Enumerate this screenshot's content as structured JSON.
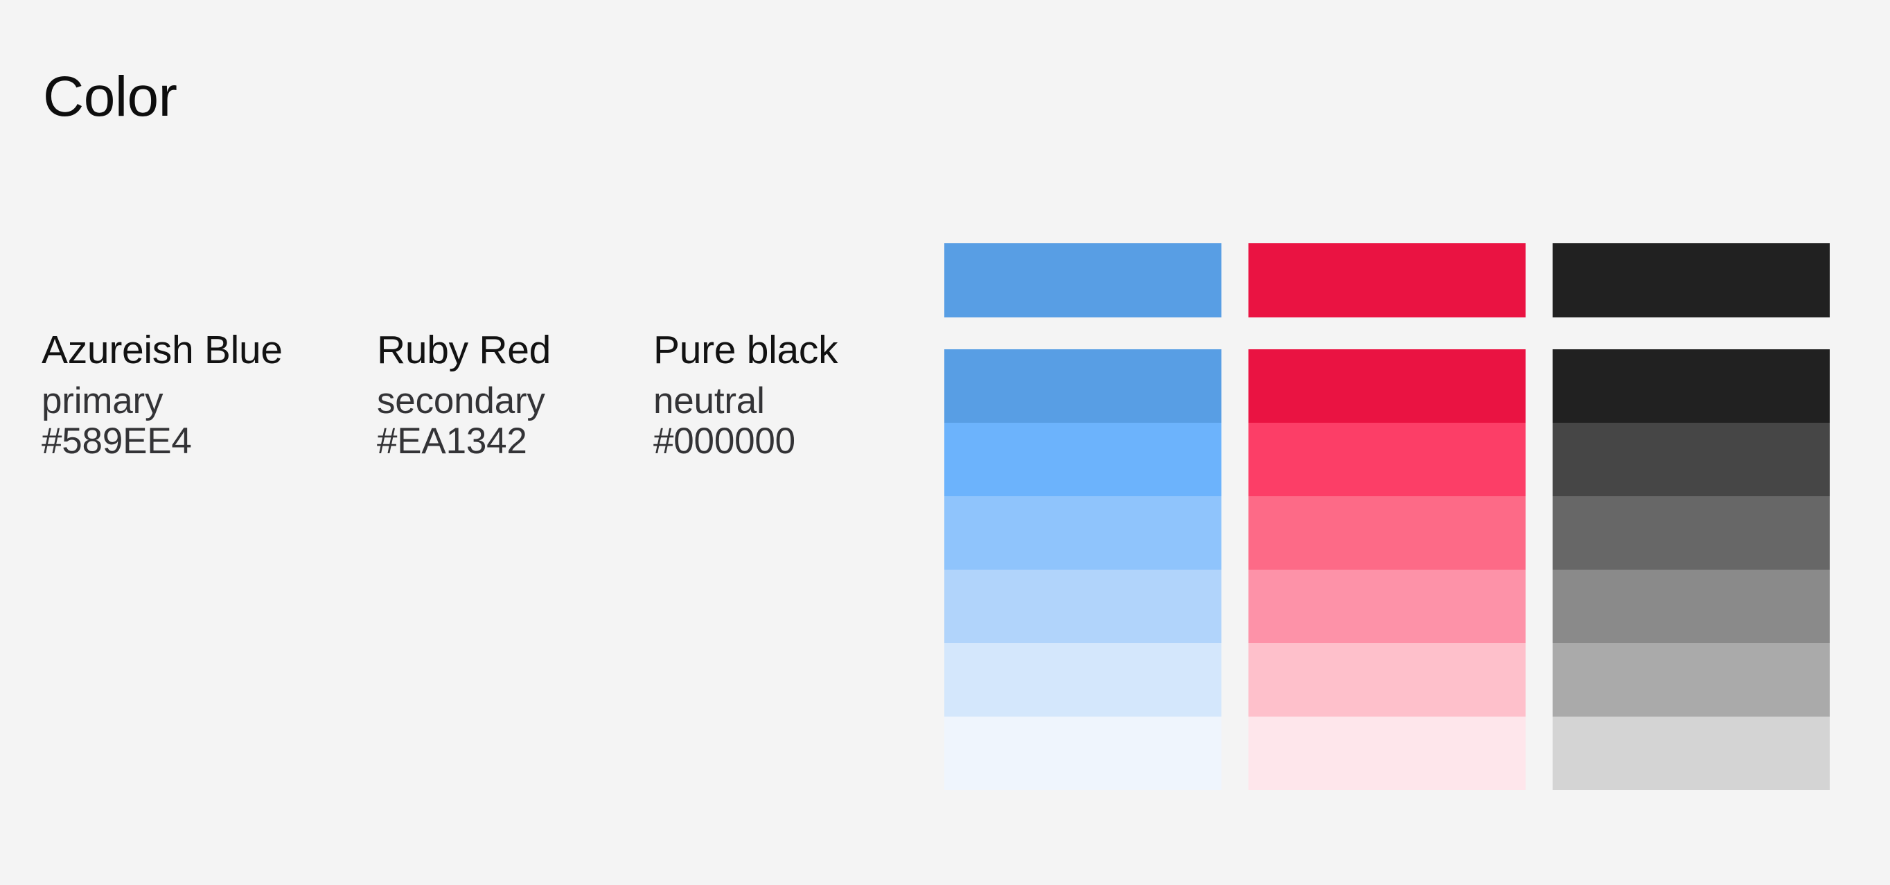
{
  "page": {
    "title": "Color",
    "background": "#F4F4F4"
  },
  "palette": [
    {
      "name": "Azureish Blue",
      "role": "primary",
      "hex": "#589EE4",
      "base_swatch": "#589EE4",
      "shades": [
        "#589EE4",
        "#6CB3FC",
        "#8FC4FC",
        "#B1D4FB",
        "#D4E7FC",
        "#EFF5FD"
      ]
    },
    {
      "name": "Ruby Red",
      "role": "secondary",
      "hex": "#EA1342",
      "base_swatch": "#EA1342",
      "shades": [
        "#EA1342",
        "#FC3E67",
        "#FD6A87",
        "#FD92A8",
        "#FEC0CB",
        "#FEE6EB"
      ]
    },
    {
      "name": "Pure black",
      "role": "neutral",
      "hex": "#000000",
      "base_swatch": "#212121",
      "shades": [
        "#212121",
        "#464646",
        "#676767",
        "#8A8A8A",
        "#AAAAAA",
        "#D4D4D4"
      ]
    }
  ]
}
